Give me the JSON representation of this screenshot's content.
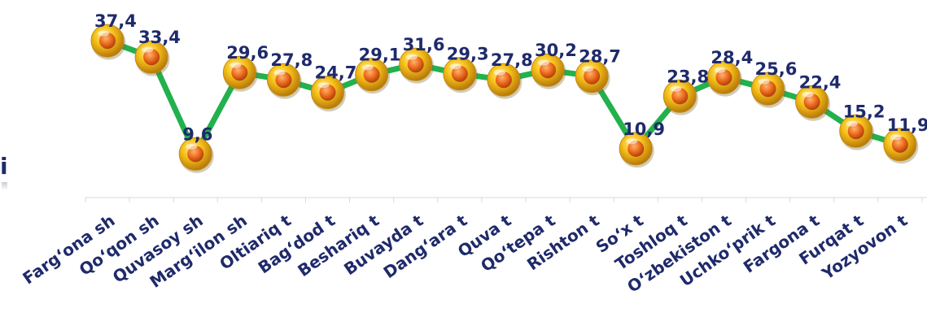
{
  "chart_data": {
    "type": "line",
    "categories": [
      "Fargʻona sh",
      "Qoʻqon sh",
      "Quvasoy sh",
      "Margʻilon sh",
      "Oltiariq t",
      "Bagʻdod t",
      "Beshariq t",
      "Buvayda t",
      "Dangʻara t",
      "Quva t",
      "Qoʻtepa t",
      "Rishton t",
      "Soʻx t",
      "Toshloq t",
      "Oʻzbekiston t",
      "Uchkoʻprik t",
      "Fargona t",
      "Furqat t",
      "Yozyovon t"
    ],
    "series": [
      {
        "values": [
          37.4,
          33.4,
          9.6,
          29.6,
          27.8,
          24.7,
          29.1,
          31.6,
          29.3,
          27.8,
          30.2,
          28.7,
          10.9,
          23.8,
          28.4,
          25.6,
          22.4,
          15.2,
          11.9
        ],
        "labels": [
          "37,4",
          "33,4",
          "9,6",
          "29,6",
          "27,8",
          "24,7",
          "29,1",
          "31,6",
          "29,3",
          "27,8",
          "30,2",
          "28,7",
          "10,9",
          "23,8",
          "28,4",
          "25,6",
          "22,4",
          "15,2",
          "11,9"
        ]
      }
    ],
    "left_edge_text": "i",
    "colors": {
      "line": "#22b14c",
      "marker_outer": "#f5c518",
      "marker_inner": "#e8701a",
      "label": "#1f2a6b",
      "axis": "#d9d9d9"
    }
  }
}
